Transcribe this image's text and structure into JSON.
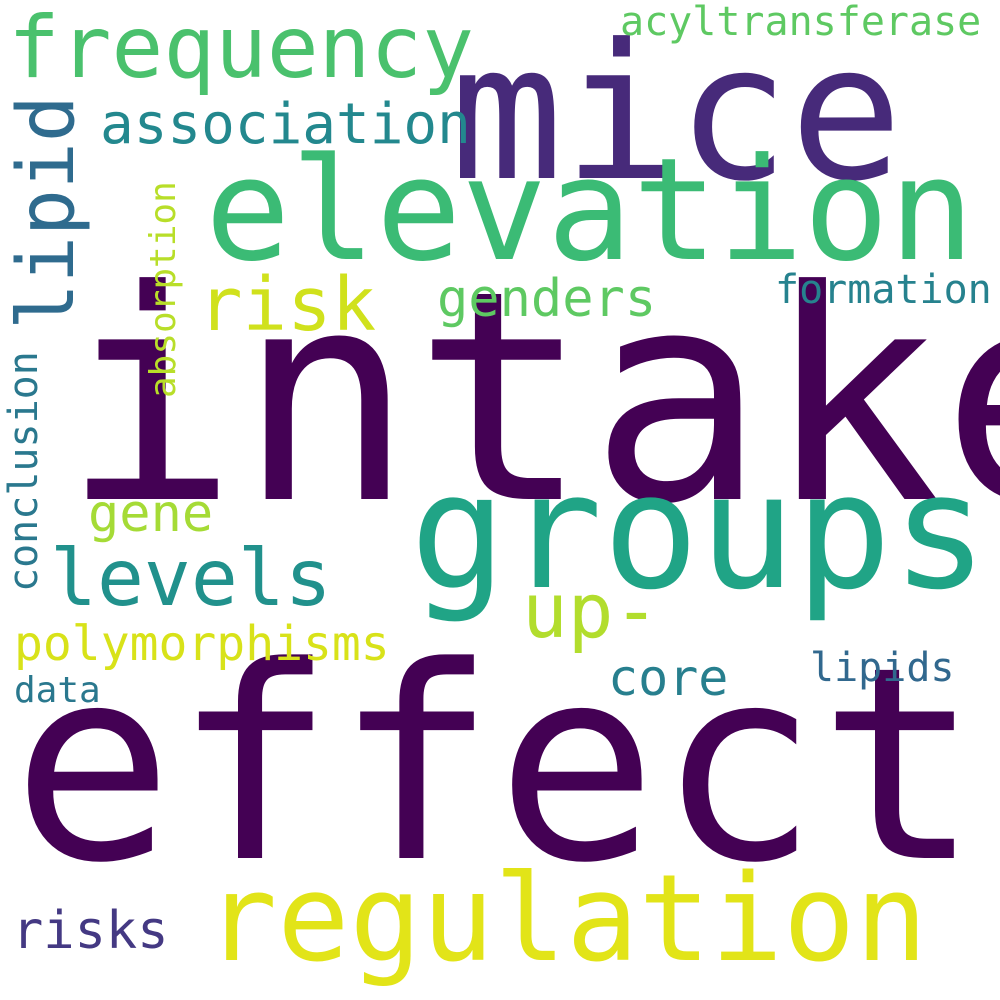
{
  "words": [
    {
      "key": "intake",
      "text": "intake",
      "color": "#440154"
    },
    {
      "key": "effects",
      "text": "effects",
      "color": "#440154"
    },
    {
      "key": "mice",
      "text": "mice",
      "color": "#472a7a"
    },
    {
      "key": "elevation",
      "text": "elevation",
      "color": "#3bbb75"
    },
    {
      "key": "groups",
      "text": "groups",
      "color": "#20a486"
    },
    {
      "key": "regulation",
      "text": "regulation",
      "color": "#e2e418"
    },
    {
      "key": "frequency",
      "text": "frequency",
      "color": "#4ac16d"
    },
    {
      "key": "lipid",
      "text": "lipid",
      "color": "#2f6b8e"
    },
    {
      "key": "risk",
      "text": "risk",
      "color": "#d0e11c"
    },
    {
      "key": "levels",
      "text": "levels",
      "color": "#21918c"
    },
    {
      "key": "up",
      "text": "up-",
      "color": "#b2dd2d"
    },
    {
      "key": "association",
      "text": "association",
      "color": "#23888e"
    },
    {
      "key": "genders",
      "text": "genders",
      "color": "#5ec962"
    },
    {
      "key": "polymorphisms",
      "text": "polymorphisms",
      "color": "#d8e219"
    },
    {
      "key": "core",
      "text": "core",
      "color": "#277f8e"
    },
    {
      "key": "gene",
      "text": "gene",
      "color": "#a5db36"
    },
    {
      "key": "risks",
      "text": "risks",
      "color": "#443983"
    },
    {
      "key": "acyltransferase",
      "text": "acyltransferase",
      "color": "#5ec962"
    },
    {
      "key": "formation",
      "text": "formation",
      "color": "#26828e"
    },
    {
      "key": "absorption",
      "text": "absorption",
      "color": "#b8de29"
    },
    {
      "key": "conclusion",
      "text": "conclusion",
      "color": "#2a788e"
    },
    {
      "key": "lipids",
      "text": "lipids",
      "color": "#31688e"
    },
    {
      "key": "data",
      "text": "data",
      "color": "#2a788e"
    }
  ]
}
